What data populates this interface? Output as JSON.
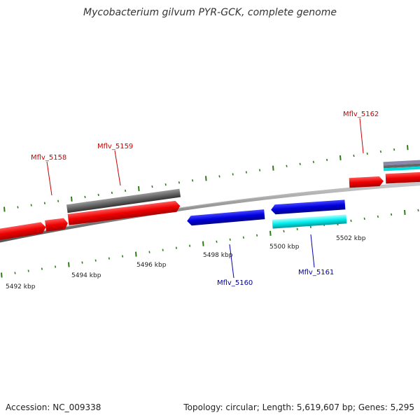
{
  "title": "Mycobacterium gilvum PYR-GCK, complete genome",
  "footer": {
    "accession": "Accession: NC_009338",
    "topology": "Topology: circular; Length: 5,619,607 bp; Genes: 5,295"
  },
  "colors": {
    "forward_gene": "#ff0000",
    "reverse_gene": "#0000ee",
    "gray_feature": "#666666",
    "cyan_feature": "#00eeee",
    "tick": "#2e7d1a",
    "backbone": "#888888",
    "label_forward": "#cc0000",
    "label_reverse": "#0000aa"
  },
  "tick_labels": [
    "5492 kbp",
    "5494 kbp",
    "5496 kbp",
    "5498 kbp",
    "5500 kbp",
    "5502 kbp"
  ],
  "gene_labels": {
    "forward": [
      "Mflv_5158",
      "Mflv_5159",
      "Mflv_5162"
    ],
    "reverse": [
      "Mflv_5160",
      "Mflv_5161"
    ]
  }
}
